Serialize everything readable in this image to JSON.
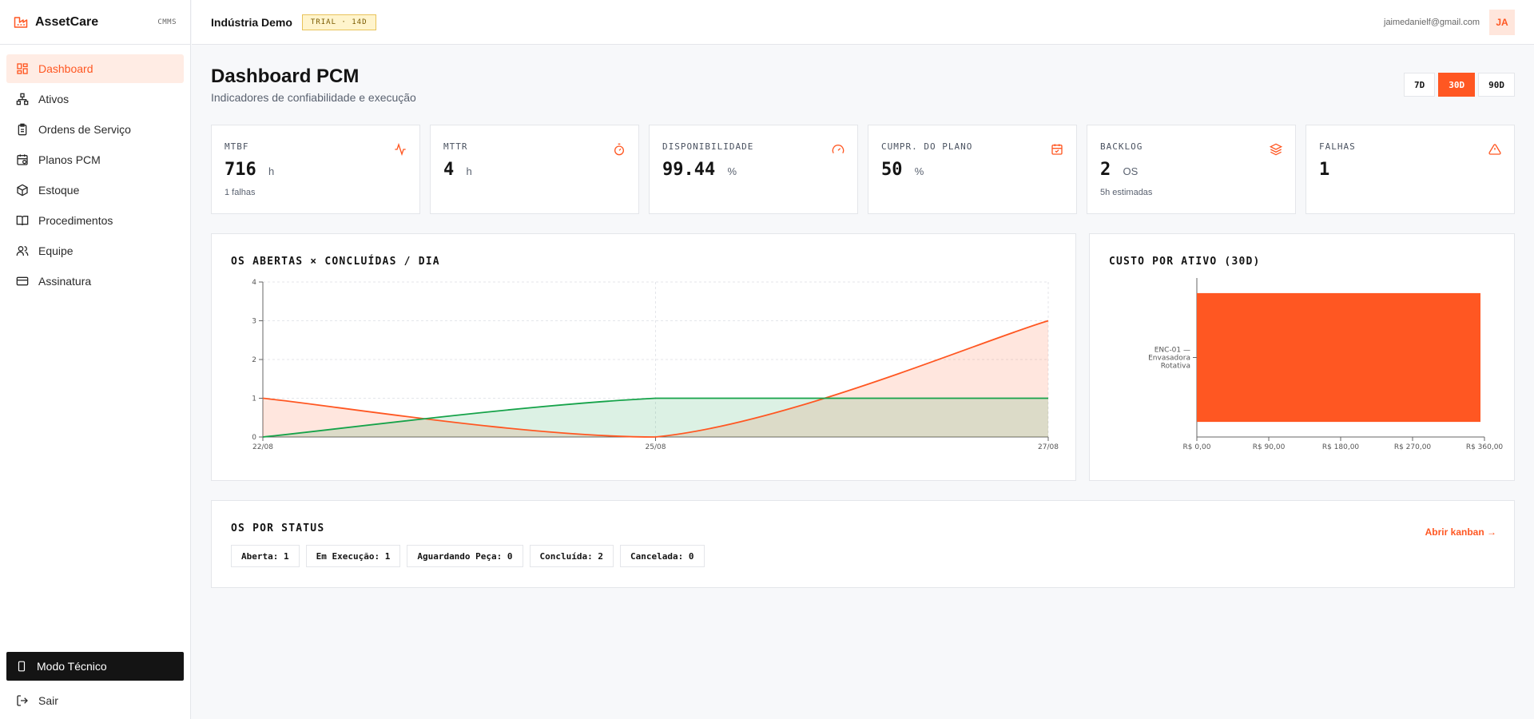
{
  "app": {
    "name": "AssetCare",
    "tag": "CMMS"
  },
  "sidebar": {
    "items": [
      {
        "label": "Dashboard",
        "icon": "dashboard-icon",
        "active": true
      },
      {
        "label": "Ativos",
        "icon": "network-icon"
      },
      {
        "label": "Ordens de Serviço",
        "icon": "clipboard-icon"
      },
      {
        "label": "Planos PCM",
        "icon": "calendar-clock-icon"
      },
      {
        "label": "Estoque",
        "icon": "package-icon"
      },
      {
        "label": "Procedimentos",
        "icon": "book-icon"
      },
      {
        "label": "Equipe",
        "icon": "users-icon"
      },
      {
        "label": "Assinatura",
        "icon": "credit-card-icon"
      }
    ],
    "modo_tecnico": "Modo Técnico",
    "sair": "Sair"
  },
  "header": {
    "org": "Indústria Demo",
    "trial": "TRIAL · 14D",
    "email": "jaimedanielf@gmail.com",
    "avatar": "JA"
  },
  "page": {
    "title": "Dashboard PCM",
    "subtitle": "Indicadores de confiabilidade e execução",
    "ranges": [
      "7D",
      "30D",
      "90D"
    ],
    "active_range": "30D"
  },
  "kpis": [
    {
      "label": "MTBF",
      "value": "716",
      "unit": "h",
      "sub": "1 falhas",
      "icon": "activity-icon"
    },
    {
      "label": "MTTR",
      "value": "4",
      "unit": "h",
      "sub": "",
      "icon": "timer-icon"
    },
    {
      "label": "DISPONIBILIDADE",
      "value": "99.44",
      "unit": "%",
      "sub": "",
      "icon": "gauge-icon"
    },
    {
      "label": "CUMPR. DO PLANO",
      "value": "50",
      "unit": "%",
      "sub": "",
      "icon": "calendar-check-icon"
    },
    {
      "label": "BACKLOG",
      "value": "2",
      "unit": "OS",
      "sub": "5h estimadas",
      "icon": "layers-icon"
    },
    {
      "label": "FALHAS",
      "value": "1",
      "unit": "",
      "sub": "",
      "icon": "alert-triangle-icon"
    }
  ],
  "colors": {
    "accent": "#ff5722",
    "green": "#16a34a"
  },
  "chart_data": [
    {
      "type": "area",
      "title": "OS ABERTAS × CONCLUÍDAS / DIA",
      "x_ticks": [
        "22/08",
        "25/08",
        "27/08"
      ],
      "x": [
        0,
        1,
        2
      ],
      "ylim": [
        0,
        4
      ],
      "y_ticks": [
        0,
        1,
        2,
        3,
        4
      ],
      "grid": true,
      "series": [
        {
          "values": [
            1,
            0,
            3
          ],
          "color": "#ff5722"
        },
        {
          "values": [
            0,
            1,
            1
          ],
          "color": "#16a34a"
        }
      ]
    },
    {
      "type": "bar",
      "orientation": "horizontal",
      "title": "CUSTO POR ATIVO (30D)",
      "categories": [
        "ENC-01 — Envasadora Rotativa"
      ],
      "values": [
        355
      ],
      "xlim": [
        0,
        360
      ],
      "x_ticks": [
        "R$ 0,00",
        "R$ 90,00",
        "R$ 180,00",
        "R$ 270,00",
        "R$ 360,00"
      ],
      "color": "#ff5722"
    }
  ],
  "status": {
    "title": "OS POR STATUS",
    "link": "Abrir kanban →",
    "chips": [
      "Aberta: 1",
      "Em Execução: 1",
      "Aguardando Peça: 0",
      "Concluída: 2",
      "Cancelada: 0"
    ]
  }
}
